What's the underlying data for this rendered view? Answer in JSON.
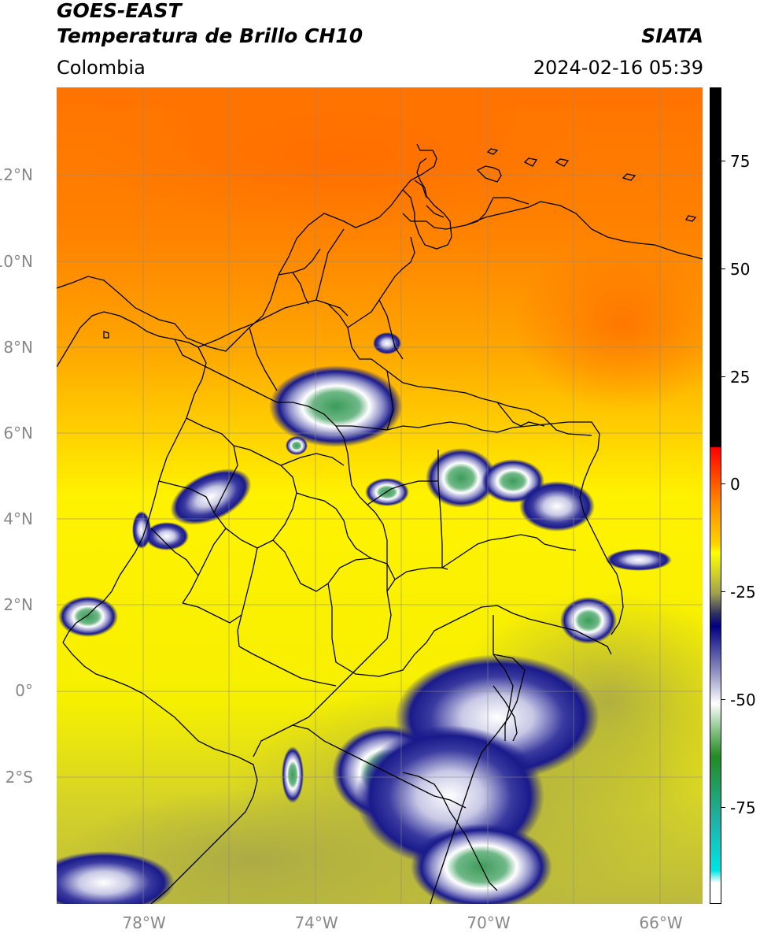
{
  "header": {
    "title_line1": "GOES-EAST",
    "title_line2": "Temperatura de Brillo CH10",
    "brand": "SIATA",
    "region": "Colombia",
    "timestamp": "2024-02-16 05:39"
  },
  "map": {
    "lat_labels": [
      "12°N",
      "10°N",
      "8°N",
      "6°N",
      "4°N",
      "2°N",
      "0°",
      "2°S"
    ],
    "lon_labels": [
      "78°W",
      "74°W",
      "70°W",
      "66°W"
    ],
    "colors": {
      "warm_orange": "#ff7a00",
      "orange": "#ffa500",
      "yellow": "#f7f000",
      "olive": "#b4b43c",
      "navy": "#1a1a8c",
      "white": "#ffffff",
      "green": "#3c9c5a"
    }
  },
  "colorbar": {
    "labels": [
      "75",
      "50",
      "25",
      "0",
      "-25",
      "-50",
      "-75"
    ],
    "stops": [
      {
        "t": 0.0,
        "c": "#000000"
      },
      {
        "t": 0.44,
        "c": "#000000"
      },
      {
        "t": 0.441,
        "c": "#ff0000"
      },
      {
        "t": 0.51,
        "c": "#ff8c00"
      },
      {
        "t": 0.56,
        "c": "#ffd400"
      },
      {
        "t": 0.57,
        "c": "#ffff00"
      },
      {
        "t": 0.6,
        "c": "#c8c832"
      },
      {
        "t": 0.62,
        "c": "#a0a050"
      },
      {
        "t": 0.645,
        "c": "#303060"
      },
      {
        "t": 0.66,
        "c": "#000080"
      },
      {
        "t": 0.72,
        "c": "#9a9ac8"
      },
      {
        "t": 0.755,
        "c": "#ffffff"
      },
      {
        "t": 0.79,
        "c": "#7fbf7f"
      },
      {
        "t": 0.82,
        "c": "#228b22"
      },
      {
        "t": 0.9,
        "c": "#20b2aa"
      },
      {
        "t": 0.96,
        "c": "#00e5e5"
      },
      {
        "t": 0.975,
        "c": "#ffffff"
      },
      {
        "t": 1.0,
        "c": "#ffffff"
      }
    ]
  }
}
